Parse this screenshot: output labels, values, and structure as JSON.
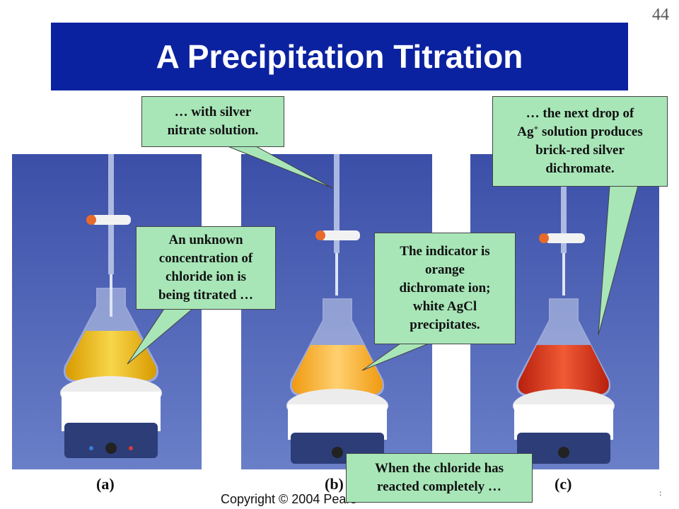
{
  "slide": {
    "number": "44",
    "title": "A Precipitation Titration",
    "copyright": "Copyright © 2004 Pears",
    "stray_mark": ":"
  },
  "panels": [
    {
      "label": "(a)",
      "liquid_color": "#f2c21a"
    },
    {
      "label": "(b)",
      "liquid_color": "#ffb527"
    },
    {
      "label": "(c)",
      "liquid_color": "#e0351e"
    }
  ],
  "callouts": {
    "silver_nitrate": {
      "lines": [
        "… with silver",
        "nitrate solution."
      ]
    },
    "next_drop": {
      "line1": "… the next drop of",
      "line2_prefix": "Ag",
      "line2_sup": "+",
      "line2_suffix": " solution produces",
      "line3": "brick-red silver",
      "line4": "dichromate."
    },
    "unknown": {
      "lines": [
        "An unknown",
        "concentration of",
        "chloride ion is",
        "being titrated …"
      ]
    },
    "indicator": {
      "lines": [
        "The indicator is",
        "orange",
        "dichromate ion;",
        "white AgCl",
        "precipitates."
      ]
    },
    "reacted": {
      "lines": [
        "When the chloride has",
        "reacted completely …"
      ]
    }
  },
  "colors": {
    "title_bar": "#0b22a0",
    "callout_fill": "#a8e6b8",
    "photo_background": "#4a5cae"
  }
}
